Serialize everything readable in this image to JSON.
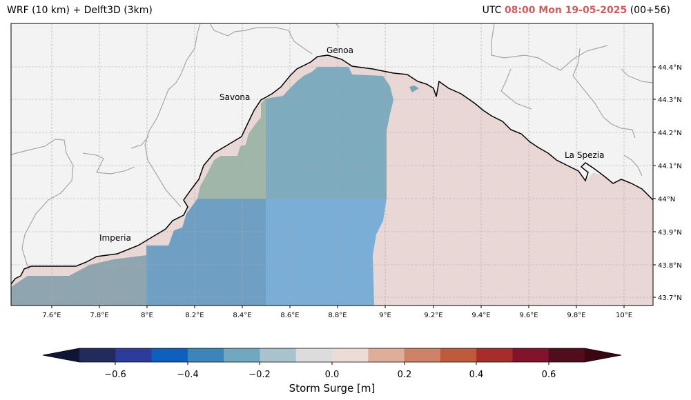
{
  "header": {
    "title": "WRF (10 km) + Delft3D (3km)",
    "utc_prefix": "UTC",
    "datetime": "08:00 Mon 19-05-2025",
    "lead": "(00+56)"
  },
  "map": {
    "cities": [
      {
        "name": "Genoa"
      },
      {
        "name": "Savona"
      },
      {
        "name": "Imperia"
      },
      {
        "name": "La Spezia"
      }
    ],
    "lon_ticks": [
      "7.6°E",
      "7.8°E",
      "8°E",
      "8.2°E",
      "8.4°E",
      "8.6°E",
      "8.8°E",
      "9°E",
      "9.2°E",
      "9.4°E",
      "9.6°E",
      "9.8°E",
      "10°E"
    ],
    "lat_ticks": [
      "44.4°N",
      "44.3°N",
      "44.2°N",
      "44.1°N",
      "44°N",
      "43.9°N",
      "43.8°N",
      "43.7°N"
    ],
    "lon_range": [
      7.43,
      10.12
    ],
    "lat_range": [
      43.67,
      44.55
    ]
  },
  "colorbar": {
    "label": "Storm Surge [m]",
    "ticks": [
      "−0.6",
      "−0.4",
      "−0.2",
      "0.0",
      "0.2",
      "0.4",
      "0.6"
    ],
    "bounds": [
      -0.7,
      0.7
    ],
    "colors": [
      "#232b5c",
      "#2d3b9c",
      "#0e60bf",
      "#3a86bb",
      "#6fa8bf",
      "#a9c3cd",
      "#dcdcdc",
      "#ecdcd7",
      "#dfae9b",
      "#cf8267",
      "#bf5a3c",
      "#a82c29",
      "#83122c",
      "#520d1d"
    ],
    "extend_low_color": "#0f1535",
    "extend_high_color": "#3a0610"
  }
}
